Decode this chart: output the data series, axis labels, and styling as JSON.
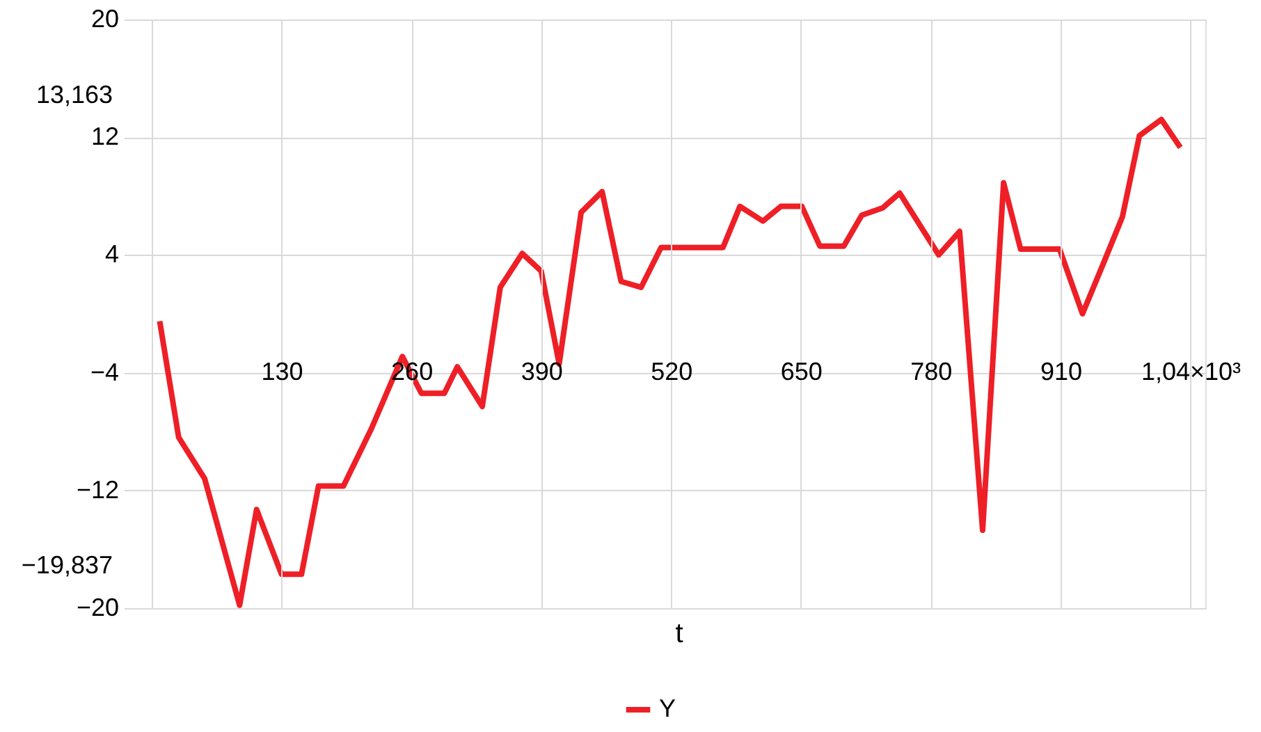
{
  "chart_data": {
    "type": "line",
    "xlabel": "t",
    "x": [
      8,
      27,
      53,
      88,
      105,
      130,
      150,
      167,
      192,
      220,
      251,
      270,
      293,
      306,
      331,
      349,
      371,
      390,
      408,
      430,
      451,
      470,
      490,
      510,
      572,
      589,
      612,
      630,
      651,
      669,
      693,
      711,
      732,
      749,
      788,
      809,
      832,
      853,
      870,
      909,
      932,
      954,
      972,
      989,
      1011,
      1030
    ],
    "series": [
      {
        "name": "Y",
        "color": "#ee1f26",
        "values": [
          -0.5,
          -8.4,
          -11.2,
          -19.8,
          -13.3,
          -17.7,
          -17.7,
          -11.7,
          -11.7,
          -7.8,
          -2.9,
          -5.4,
          -5.4,
          -3.6,
          -6.3,
          1.8,
          4.1,
          2.9,
          -3.4,
          6.9,
          8.3,
          2.2,
          1.8,
          4.5,
          4.5,
          7.3,
          6.3,
          7.3,
          7.3,
          4.6,
          4.6,
          6.7,
          7.2,
          8.2,
          4.0,
          5.6,
          -14.7,
          8.9,
          4.4,
          4.4,
          0,
          3.6,
          6.6,
          12.1,
          13.2,
          11.3
        ]
      }
    ],
    "xlim": [
      0,
      1055
    ],
    "xticks": [
      {
        "value": 0,
        "label": null
      },
      130,
      260,
      390,
      520,
      650,
      780,
      910,
      {
        "value": 1040,
        "label": "1,04×10³"
      }
    ],
    "ylim": [
      -20,
      20
    ],
    "yticks": [
      20,
      12,
      4,
      -4,
      -12,
      -20
    ],
    "annotations": [
      "13,163",
      "−19,837"
    ],
    "grid": true,
    "legend": "bottom",
    "line_style": "solid",
    "marker": "none"
  }
}
